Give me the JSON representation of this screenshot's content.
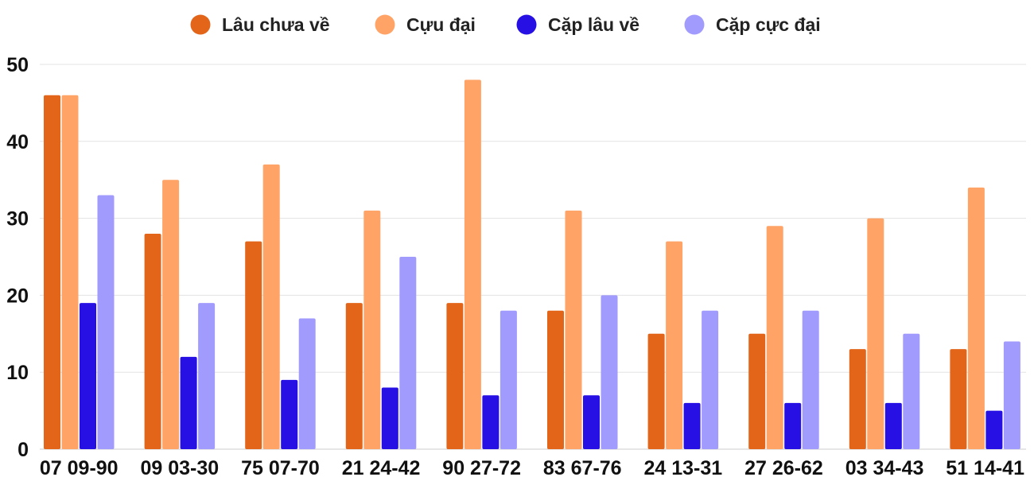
{
  "chart_data": {
    "type": "bar",
    "categories": [
      "07 09-90",
      "09 03-30",
      "75 07-70",
      "21 24-42",
      "90 27-72",
      "83 67-76",
      "24 13-31",
      "27 26-62",
      "03 34-43",
      "51 14-41"
    ],
    "series": [
      {
        "name": "Lâu chưa về",
        "color": "#e2651a",
        "values": [
          46,
          28,
          27,
          19,
          19,
          18,
          15,
          15,
          13,
          13
        ]
      },
      {
        "name": "Cựu đại",
        "color": "#ffa366",
        "values": [
          46,
          35,
          37,
          31,
          48,
          31,
          27,
          29,
          30,
          34
        ]
      },
      {
        "name": "Cặp lâu về",
        "color": "#2710e3",
        "values": [
          19,
          12,
          9,
          8,
          7,
          7,
          6,
          6,
          6,
          5
        ]
      },
      {
        "name": "Cặp cực đại",
        "color": "#a29bfe",
        "values": [
          33,
          19,
          17,
          25,
          18,
          20,
          18,
          18,
          15,
          14
        ]
      }
    ],
    "ylim": [
      0,
      50
    ],
    "yticks": [
      0,
      10,
      20,
      30,
      40,
      50
    ],
    "grid": true,
    "legend_position": "top-center",
    "title": "",
    "xlabel": "",
    "ylabel": ""
  }
}
